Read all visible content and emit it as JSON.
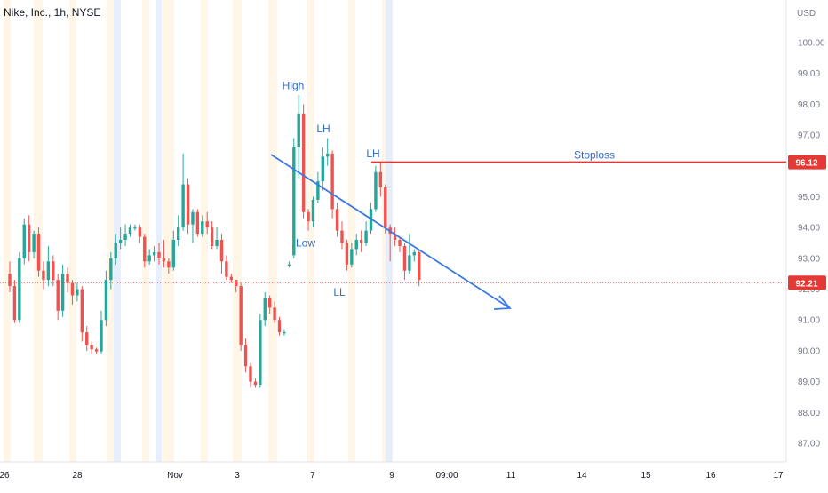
{
  "chart_data": {
    "type": "candlestick",
    "title": "Nike, Inc., 1h, NYSE",
    "currency": "USD",
    "yticks": [
      87.0,
      88.0,
      89.0,
      90.0,
      91.0,
      92.0,
      93.0,
      94.0,
      95.0,
      96.0,
      97.0,
      98.0,
      99.0,
      100.0
    ],
    "ylim": [
      86.4,
      101.4
    ],
    "xticks": [
      "26",
      "28",
      "Nov",
      "3",
      "7",
      "9",
      "09:00",
      "11",
      "14",
      "15",
      "16",
      "17"
    ],
    "colors": {
      "up": "#26a69a",
      "down": "#ef5350",
      "stoploss": "#e53935",
      "trend": "#3d7ae0",
      "label": "#2f6cc8",
      "current": "#ef5350"
    },
    "current_price": 92.21,
    "stoploss_price": 96.12,
    "stoploss_label": "Stoploss",
    "annotations": [
      {
        "text": "High",
        "price": 98.6
      },
      {
        "text": "LH",
        "price": 97.2
      },
      {
        "text": "LH",
        "price": 96.4
      },
      {
        "text": "Low",
        "price": 93.5
      },
      {
        "text": "LL",
        "price": 91.9
      }
    ],
    "candles": [
      [
        92.5,
        92.1,
        92.9,
        91.9
      ],
      [
        92.1,
        91.0,
        92.3,
        90.9
      ],
      [
        91.0,
        93.0,
        93.2,
        90.9
      ],
      [
        93.0,
        94.1,
        94.3,
        92.8
      ],
      [
        94.1,
        93.2,
        94.4,
        92.9
      ],
      [
        93.2,
        93.8,
        93.9,
        93.0
      ],
      [
        93.8,
        92.6,
        94.0,
        92.4
      ],
      [
        92.6,
        92.3,
        92.9,
        92.0
      ],
      [
        92.3,
        92.9,
        93.4,
        92.1
      ],
      [
        92.9,
        92.3,
        93.1,
        92.1
      ],
      [
        92.3,
        91.3,
        92.5,
        91.0
      ],
      [
        91.3,
        92.5,
        92.8,
        91.1
      ],
      [
        92.5,
        92.2,
        92.7,
        91.9
      ],
      [
        92.2,
        91.8,
        92.3,
        91.5
      ],
      [
        91.8,
        92.0,
        92.2,
        91.6
      ],
      [
        92.0,
        90.6,
        92.1,
        90.3
      ],
      [
        90.6,
        90.2,
        90.8,
        90.0
      ],
      [
        90.2,
        90.05,
        90.3,
        89.9
      ],
      [
        90.05,
        89.98,
        90.1,
        89.9
      ],
      [
        89.98,
        91.0,
        91.3,
        89.9
      ],
      [
        91.0,
        92.3,
        92.6,
        90.8
      ],
      [
        92.3,
        93.0,
        93.2,
        92.0
      ],
      [
        93.0,
        93.5,
        93.8,
        92.8
      ],
      [
        93.5,
        93.6,
        94.0,
        93.3
      ],
      [
        93.6,
        93.8,
        94.1,
        93.4
      ],
      [
        93.8,
        94.0,
        94.1,
        93.7
      ],
      [
        94.0,
        94.0,
        94.1,
        93.9
      ],
      [
        94.0,
        93.7,
        94.1,
        93.5
      ],
      [
        93.7,
        92.9,
        93.8,
        92.7
      ],
      [
        92.9,
        93.1,
        93.3,
        92.8
      ],
      [
        93.1,
        93.2,
        93.4,
        92.9
      ],
      [
        93.2,
        93.0,
        93.5,
        92.8
      ],
      [
        93.0,
        92.9,
        93.6,
        92.7
      ],
      [
        92.9,
        92.7,
        93.0,
        92.5
      ],
      [
        92.7,
        93.6,
        93.9,
        92.6
      ],
      [
        93.6,
        94.0,
        94.4,
        93.4
      ],
      [
        94.0,
        95.4,
        96.4,
        93.9
      ],
      [
        95.4,
        94.1,
        95.6,
        93.8
      ],
      [
        94.1,
        94.5,
        94.6,
        93.5
      ],
      [
        94.5,
        93.8,
        94.6,
        93.7
      ],
      [
        93.8,
        94.2,
        94.4,
        93.7
      ],
      [
        94.2,
        94.0,
        94.5,
        93.8
      ],
      [
        94.0,
        93.4,
        94.2,
        93.3
      ],
      [
        93.4,
        93.6,
        94.0,
        93.3
      ],
      [
        93.6,
        92.9,
        93.8,
        92.5
      ],
      [
        92.9,
        92.4,
        93.1,
        92.3
      ],
      [
        92.4,
        92.3,
        92.5,
        92.2
      ],
      [
        92.3,
        92.1,
        92.3,
        91.9
      ],
      [
        92.1,
        90.2,
        92.2,
        90.0
      ],
      [
        90.2,
        89.5,
        90.4,
        89.3
      ],
      [
        89.5,
        89.0,
        89.6,
        88.8
      ],
      [
        89.0,
        88.9,
        89.1,
        88.8
      ],
      [
        88.9,
        91.0,
        91.2,
        88.8
      ],
      [
        91.0,
        91.7,
        91.9,
        90.8
      ],
      [
        91.7,
        91.4,
        91.8,
        91.2
      ],
      [
        91.4,
        91.0,
        91.6,
        90.9
      ],
      [
        91.0,
        90.6,
        91.1,
        90.5
      ],
      [
        90.6,
        90.6,
        90.7,
        90.5
      ],
      [
        92.8,
        92.8,
        92.9,
        92.7
      ],
      [
        93.1,
        96.6,
        96.9,
        93.0
      ],
      [
        96.6,
        97.7,
        98.3,
        95.6
      ],
      [
        97.7,
        94.5,
        98.0,
        94.3
      ],
      [
        94.5,
        94.2,
        94.6,
        93.9
      ],
      [
        94.2,
        94.9,
        95.0,
        94.0
      ],
      [
        94.9,
        95.5,
        95.8,
        94.8
      ],
      [
        95.5,
        96.3,
        96.6,
        95.2
      ],
      [
        96.3,
        96.4,
        96.9,
        96.0
      ],
      [
        96.4,
        94.6,
        96.5,
        94.3
      ],
      [
        94.6,
        93.9,
        94.8,
        93.7
      ],
      [
        93.9,
        93.5,
        94.2,
        93.3
      ],
      [
        93.5,
        92.8,
        93.6,
        92.6
      ],
      [
        92.8,
        93.3,
        93.5,
        92.7
      ],
      [
        93.3,
        93.6,
        93.8,
        93.1
      ],
      [
        93.6,
        93.5,
        93.9,
        93.2
      ],
      [
        93.5,
        93.9,
        94.2,
        93.4
      ],
      [
        93.9,
        94.6,
        94.8,
        93.8
      ],
      [
        94.6,
        95.8,
        96.0,
        94.5
      ],
      [
        95.8,
        95.3,
        96.1,
        95.0
      ],
      [
        95.3,
        94.0,
        95.4,
        93.8
      ],
      [
        94.0,
        93.8,
        94.1,
        92.9
      ],
      [
        93.8,
        93.6,
        94.0,
        93.4
      ],
      [
        93.6,
        93.4,
        93.7,
        93.2
      ],
      [
        93.4,
        92.6,
        93.5,
        92.3
      ],
      [
        92.6,
        93.1,
        93.8,
        92.5
      ],
      [
        93.1,
        93.2,
        93.3,
        92.9
      ],
      [
        93.2,
        92.3,
        93.3,
        92.1
      ]
    ]
  }
}
